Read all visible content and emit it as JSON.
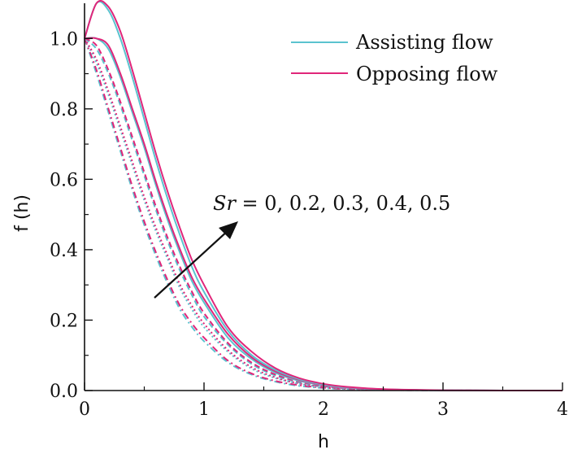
{
  "chart_data": {
    "type": "line",
    "title": "",
    "xlabel": "h",
    "ylabel": "f (h)",
    "xlim": [
      0,
      4
    ],
    "ylim": [
      0,
      1.1
    ],
    "xticks": [
      0,
      1,
      2,
      3,
      4
    ],
    "xtick_labels": [
      "0",
      "1",
      "2",
      "3",
      "4"
    ],
    "yticks": [
      0,
      0.2,
      0.4,
      0.6,
      0.8,
      1.0
    ],
    "ytick_labels": [
      "0.0",
      "0.2",
      "0.4",
      "0.6",
      "0.8",
      "1.0"
    ],
    "grid": false,
    "legend_position": "top-right",
    "legend": [
      {
        "label": "Assisting flow",
        "color": "#5bc3cf"
      },
      {
        "label": "Opposing flow",
        "color": "#e0267a"
      }
    ],
    "annotation": {
      "param_symbol": "Sr",
      "text": " = 0, 0.2, 0.3, 0.4, 0.5",
      "arrow_direction": "increasing Sr"
    },
    "x": [
      0,
      0.1,
      0.2,
      0.3,
      0.4,
      0.5,
      0.6,
      0.7,
      0.8,
      0.9,
      1.0,
      1.2,
      1.4,
      1.6,
      1.8,
      2.0,
      2.2,
      2.5,
      3.0,
      3.5,
      4.0
    ],
    "series": [
      {
        "group": "Assisting flow",
        "sr": "0",
        "color": "#5bc3cf",
        "dash": "8 4 2 4",
        "values": [
          1.0,
          0.9,
          0.79,
          0.68,
          0.57,
          0.47,
          0.38,
          0.3,
          0.23,
          0.18,
          0.14,
          0.08,
          0.045,
          0.025,
          0.013,
          0.007,
          0.004,
          0.0015,
          0.0003,
          0.0,
          0.0
        ]
      },
      {
        "group": "Opposing flow",
        "sr": "0",
        "color": "#e0267a",
        "dash": "8 4 2 4",
        "values": [
          1.0,
          0.91,
          0.8,
          0.69,
          0.58,
          0.48,
          0.39,
          0.31,
          0.24,
          0.19,
          0.15,
          0.085,
          0.048,
          0.027,
          0.015,
          0.008,
          0.0045,
          0.0017,
          0.0004,
          0.0,
          0.0
        ]
      },
      {
        "group": "Assisting flow",
        "sr": "0.2",
        "color": "#5bc3cf",
        "dash": "2 3",
        "values": [
          1.0,
          0.93,
          0.84,
          0.74,
          0.64,
          0.54,
          0.45,
          0.37,
          0.29,
          0.23,
          0.18,
          0.11,
          0.062,
          0.035,
          0.019,
          0.01,
          0.006,
          0.0022,
          0.0004,
          0.0,
          0.0
        ]
      },
      {
        "group": "Opposing flow",
        "sr": "0.2",
        "color": "#e0267a",
        "dash": "2 3",
        "values": [
          1.0,
          0.94,
          0.85,
          0.75,
          0.65,
          0.55,
          0.46,
          0.38,
          0.3,
          0.24,
          0.19,
          0.115,
          0.066,
          0.037,
          0.02,
          0.011,
          0.0062,
          0.0024,
          0.0005,
          0.0,
          0.0
        ]
      },
      {
        "group": "Assisting flow",
        "sr": "0.3",
        "color": "#5bc3cf",
        "dash": "7 4",
        "values": [
          1.0,
          0.97,
          0.9,
          0.81,
          0.71,
          0.61,
          0.51,
          0.42,
          0.34,
          0.27,
          0.21,
          0.13,
          0.075,
          0.042,
          0.023,
          0.012,
          0.0068,
          0.0026,
          0.0005,
          0.0,
          0.0
        ]
      },
      {
        "group": "Opposing flow",
        "sr": "0.3",
        "color": "#e0267a",
        "dash": "7 4",
        "values": [
          1.0,
          0.98,
          0.91,
          0.82,
          0.72,
          0.62,
          0.52,
          0.43,
          0.35,
          0.28,
          0.22,
          0.135,
          0.079,
          0.045,
          0.025,
          0.013,
          0.0072,
          0.0028,
          0.0006,
          0.0,
          0.0
        ]
      },
      {
        "group": "Assisting flow",
        "sr": "0.4",
        "color": "#5bc3cf",
        "dash": "",
        "values": [
          1.0,
          1.0,
          0.97,
          0.89,
          0.79,
          0.69,
          0.58,
          0.48,
          0.39,
          0.31,
          0.25,
          0.15,
          0.089,
          0.05,
          0.027,
          0.015,
          0.0082,
          0.0031,
          0.0006,
          0.0,
          0.0
        ]
      },
      {
        "group": "Opposing flow",
        "sr": "0.4",
        "color": "#e0267a",
        "dash": "",
        "values": [
          1.0,
          1.0,
          0.98,
          0.9,
          0.8,
          0.7,
          0.59,
          0.49,
          0.4,
          0.32,
          0.26,
          0.16,
          0.094,
          0.054,
          0.03,
          0.016,
          0.0088,
          0.0034,
          0.0007,
          0.0,
          0.0
        ]
      },
      {
        "group": "Assisting flow",
        "sr": "0.5",
        "color": "#5bc3cf",
        "dash": "",
        "values": [
          1.0,
          1.1,
          1.08,
          1.0,
          0.89,
          0.77,
          0.65,
          0.54,
          0.44,
          0.35,
          0.28,
          0.17,
          0.1,
          0.058,
          0.032,
          0.017,
          0.0095,
          0.0036,
          0.0007,
          0.0001,
          0.0
        ]
      },
      {
        "group": "Opposing flow",
        "sr": "0.5",
        "color": "#e0267a",
        "dash": "",
        "values": [
          1.0,
          1.1,
          1.09,
          1.02,
          0.91,
          0.79,
          0.67,
          0.56,
          0.46,
          0.37,
          0.3,
          0.18,
          0.11,
          0.063,
          0.035,
          0.019,
          0.0105,
          0.004,
          0.0008,
          0.0001,
          0.0
        ]
      }
    ]
  }
}
